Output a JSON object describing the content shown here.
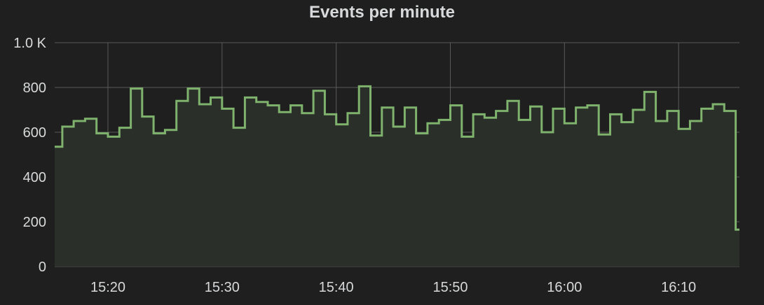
{
  "panel": {
    "title": "Events per minute"
  },
  "colors": {
    "background": "#1f1f1f",
    "grid": "#5a5a5a",
    "line": "#7eb26d",
    "fill": "#2a2f29",
    "text": "#d8d9da"
  },
  "chart_data": {
    "type": "line",
    "title": "Events per minute",
    "step": true,
    "grid": true,
    "legend": "none",
    "ylim": [
      0,
      1000
    ],
    "yticks": [
      {
        "value": 0,
        "label": "0"
      },
      {
        "value": 200,
        "label": "200"
      },
      {
        "value": 400,
        "label": "400"
      },
      {
        "value": 600,
        "label": "600"
      },
      {
        "value": 800,
        "label": "800"
      },
      {
        "value": 1000,
        "label": "1.0 K"
      }
    ],
    "xlim": [
      "15:15:20",
      "16:15:20"
    ],
    "xticks": [
      "15:20",
      "15:30",
      "15:40",
      "15:50",
      "16:00",
      "16:10"
    ],
    "series": [
      {
        "x": [
          "15:15:20",
          "15:16:00",
          "15:17:00",
          "15:18:00",
          "15:19:00",
          "15:20:00",
          "15:21:00",
          "15:22:00",
          "15:23:00",
          "15:24:00",
          "15:25:00",
          "15:26:00",
          "15:27:00",
          "15:28:00",
          "15:29:00",
          "15:30:00",
          "15:31:00",
          "15:32:00",
          "15:33:00",
          "15:34:00",
          "15:35:00",
          "15:36:00",
          "15:37:00",
          "15:38:00",
          "15:39:00",
          "15:40:00",
          "15:41:00",
          "15:42:00",
          "15:43:00",
          "15:44:00",
          "15:45:00",
          "15:46:00",
          "15:47:00",
          "15:48:00",
          "15:49:00",
          "15:50:00",
          "15:51:00",
          "15:52:00",
          "15:53:00",
          "15:54:00",
          "15:55:00",
          "15:56:00",
          "15:57:00",
          "15:58:00",
          "15:59:00",
          "16:00:00",
          "16:01:00",
          "16:02:00",
          "16:03:00",
          "16:04:00",
          "16:05:00",
          "16:06:00",
          "16:07:00",
          "16:08:00",
          "16:09:00",
          "16:10:00",
          "16:11:00",
          "16:12:00",
          "16:13:00",
          "16:14:00",
          "16:15:00",
          "16:15:20"
        ],
        "values": [
          535,
          625,
          650,
          660,
          595,
          580,
          620,
          795,
          670,
          595,
          610,
          740,
          795,
          725,
          755,
          705,
          620,
          755,
          735,
          720,
          690,
          720,
          685,
          785,
          680,
          635,
          685,
          805,
          585,
          710,
          625,
          710,
          595,
          640,
          655,
          720,
          580,
          680,
          665,
          695,
          740,
          655,
          715,
          600,
          705,
          640,
          710,
          720,
          590,
          680,
          645,
          700,
          780,
          650,
          695,
          615,
          650,
          705,
          725,
          695,
          165,
          165
        ]
      }
    ]
  }
}
